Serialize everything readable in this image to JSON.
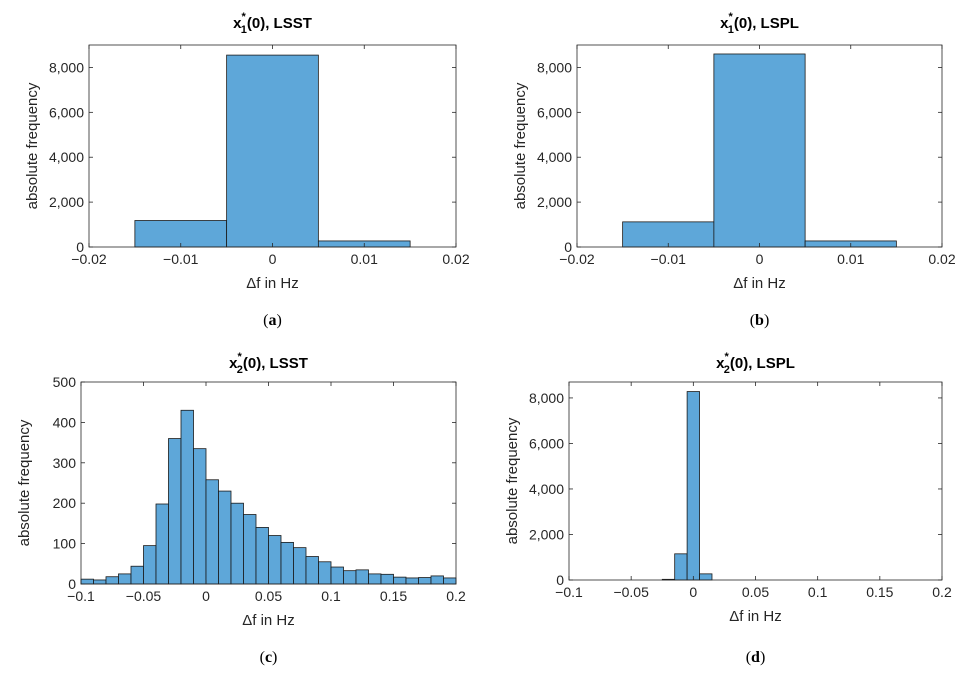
{
  "chart_data": [
    {
      "id": "a",
      "type": "bar",
      "title_parts": {
        "base": "x",
        "sup": "*",
        "sub": "1",
        "rest": "(0), LSST"
      },
      "xlabel": "Δf in Hz",
      "ylabel": "absolute frequency",
      "caption": {
        "open": "(",
        "letter": "a",
        "close": ")"
      },
      "xlim": [
        -0.02,
        0.02
      ],
      "ylim": [
        0,
        9000
      ],
      "xticks": [
        -0.02,
        -0.01,
        0,
        0.01,
        0.02
      ],
      "xtick_labels": [
        "−0.02",
        "−0.01",
        "0",
        "0.01",
        "0.02"
      ],
      "yticks": [
        0,
        2000,
        4000,
        6000,
        8000
      ],
      "ytick_labels": [
        "0",
        "2,000",
        "4,000",
        "6,000",
        "8,000"
      ],
      "bin_edges": [
        -0.015,
        -0.005,
        0.005,
        0.015
      ],
      "values": [
        1180,
        8550,
        270
      ]
    },
    {
      "id": "b",
      "type": "bar",
      "title_parts": {
        "base": "x",
        "sup": "*",
        "sub": "1",
        "rest": "(0), LSPL"
      },
      "xlabel": "Δf in Hz",
      "ylabel": "absolute frequency",
      "caption": {
        "open": "(",
        "letter": "b",
        "close": ")"
      },
      "xlim": [
        -0.02,
        0.02
      ],
      "ylim": [
        0,
        9000
      ],
      "xticks": [
        -0.02,
        -0.01,
        0,
        0.01,
        0.02
      ],
      "xtick_labels": [
        "−0.02",
        "−0.01",
        "0",
        "0.01",
        "0.02"
      ],
      "yticks": [
        0,
        2000,
        4000,
        6000,
        8000
      ],
      "ytick_labels": [
        "0",
        "2,000",
        "4,000",
        "6,000",
        "8,000"
      ],
      "bin_edges": [
        -0.015,
        -0.005,
        0.005,
        0.015
      ],
      "values": [
        1120,
        8600,
        270
      ]
    },
    {
      "id": "c",
      "type": "bar",
      "title_parts": {
        "base": "x",
        "sup": "*",
        "sub": "2",
        "rest": "(0), LSST"
      },
      "xlabel": "Δf in Hz",
      "ylabel": "absolute frequency",
      "caption": {
        "open": "(",
        "letter": "c",
        "close": ")"
      },
      "xlim": [
        -0.1,
        0.2
      ],
      "ylim": [
        0,
        500
      ],
      "xticks": [
        -0.1,
        -0.05,
        0,
        0.05,
        0.1,
        0.15,
        0.2
      ],
      "xtick_labels": [
        "−0.1",
        "−0.05",
        "0",
        "0.05",
        "0.1",
        "0.15",
        "0.2"
      ],
      "yticks": [
        0,
        100,
        200,
        300,
        400,
        500
      ],
      "ytick_labels": [
        "0",
        "100",
        "200",
        "300",
        "400",
        "500"
      ],
      "bin_edges": [
        -0.1,
        -0.09,
        -0.08,
        -0.07,
        -0.06,
        -0.05,
        -0.04,
        -0.03,
        -0.02,
        -0.01,
        0.0,
        0.01,
        0.02,
        0.03,
        0.04,
        0.05,
        0.06,
        0.07,
        0.08,
        0.09,
        0.1,
        0.11,
        0.12,
        0.13,
        0.14,
        0.15,
        0.16,
        0.17,
        0.18,
        0.19,
        0.2
      ],
      "values": [
        12,
        10,
        18,
        25,
        44,
        95,
        198,
        360,
        430,
        335,
        258,
        230,
        200,
        172,
        140,
        120,
        103,
        90,
        68,
        55,
        42,
        33,
        35,
        25,
        24,
        17,
        15,
        16,
        20,
        15
      ]
    },
    {
      "id": "d",
      "type": "bar",
      "title_parts": {
        "base": "x",
        "sup": "*",
        "sub": "2",
        "rest": "(0), LSPL"
      },
      "xlabel": "Δf in Hz",
      "ylabel": "absolute frequency",
      "caption": {
        "open": "(",
        "letter": "d",
        "close": ")"
      },
      "xlim": [
        -0.1,
        0.2
      ],
      "ylim": [
        0,
        8700
      ],
      "xticks": [
        -0.1,
        -0.05,
        0,
        0.05,
        0.1,
        0.15,
        0.2
      ],
      "xtick_labels": [
        "−0.1",
        "−0.05",
        "0",
        "0.05",
        "0.1",
        "0.15",
        "0.2"
      ],
      "yticks": [
        0,
        2000,
        4000,
        6000,
        8000
      ],
      "ytick_labels": [
        "0",
        "2,000",
        "4,000",
        "6,000",
        "8,000"
      ],
      "bin_edges": [
        -0.025,
        -0.015,
        -0.005,
        0.005,
        0.015
      ],
      "values": [
        30,
        1150,
        8280,
        270
      ]
    }
  ],
  "colors": {
    "bar_fill": "#5ea7d9",
    "bar_edge": "#1a1a1a",
    "axis": "#262626"
  }
}
